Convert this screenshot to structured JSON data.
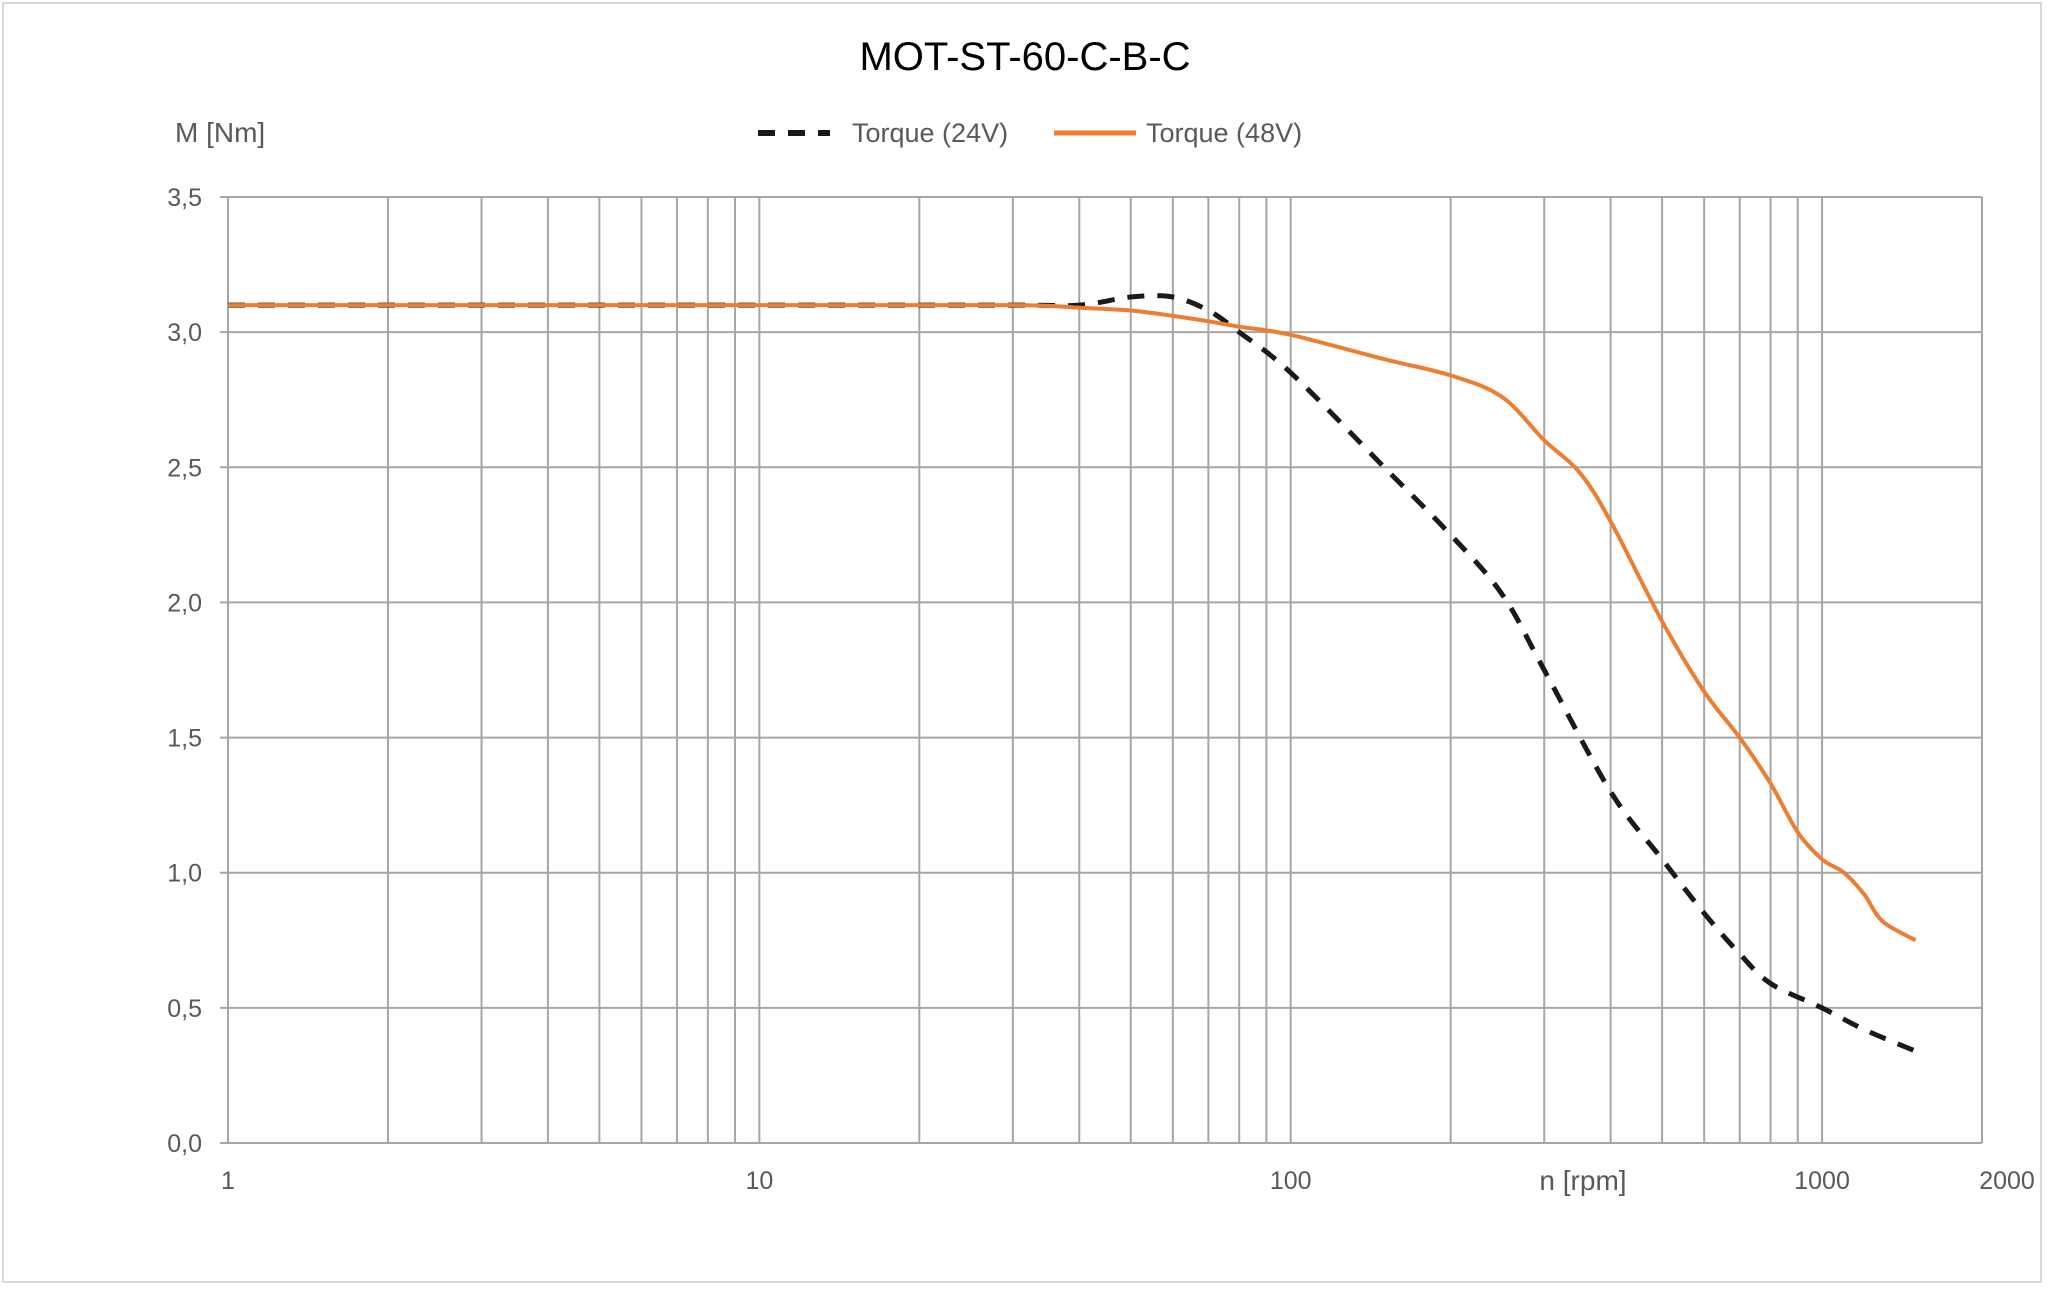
{
  "chart_data": {
    "type": "line",
    "title": "MOT-ST-60-C-B-C",
    "xlabel": "n [rpm]",
    "ylabel": "M [Nm]",
    "x_scale": "log",
    "xlim": [
      1,
      2000
    ],
    "ylim": [
      0,
      3.5
    ],
    "x_ticks": [
      1,
      10,
      100,
      1000,
      2000
    ],
    "x_tick_labels": [
      "1",
      "10",
      "100",
      "1000",
      "2000"
    ],
    "y_ticks": [
      0,
      0.5,
      1.0,
      1.5,
      2.0,
      2.5,
      3.0,
      3.5
    ],
    "y_tick_labels": [
      "0,0",
      "0,5",
      "1,0",
      "1,5",
      "2,0",
      "2,5",
      "3,0",
      "3,5"
    ],
    "grid": true,
    "legend_position": "top-center",
    "series": [
      {
        "name": "Torque (24V)",
        "color": "#1a1a1a",
        "style": "dashed",
        "x": [
          1,
          10,
          30,
          40,
          50,
          60,
          70,
          80,
          100,
          150,
          200,
          250,
          300,
          400,
          500,
          600,
          700,
          800,
          1000,
          1200,
          1500
        ],
        "y": [
          3.1,
          3.1,
          3.1,
          3.1,
          3.13,
          3.13,
          3.08,
          3.0,
          2.85,
          2.5,
          2.25,
          2.03,
          1.75,
          1.3,
          1.05,
          0.85,
          0.7,
          0.59,
          0.5,
          0.42,
          0.34
        ]
      },
      {
        "name": "Torque (48V)",
        "color": "#ed7d31",
        "style": "solid",
        "x": [
          1,
          10,
          30,
          40,
          50,
          60,
          70,
          80,
          100,
          150,
          200,
          250,
          300,
          350,
          400,
          500,
          600,
          700,
          800,
          900,
          1000,
          1100,
          1200,
          1300,
          1500
        ],
        "y": [
          3.1,
          3.1,
          3.1,
          3.09,
          3.08,
          3.06,
          3.04,
          3.02,
          2.99,
          2.9,
          2.84,
          2.76,
          2.6,
          2.48,
          2.3,
          1.93,
          1.67,
          1.5,
          1.33,
          1.15,
          1.05,
          1.0,
          0.92,
          0.82,
          0.75
        ]
      }
    ]
  }
}
